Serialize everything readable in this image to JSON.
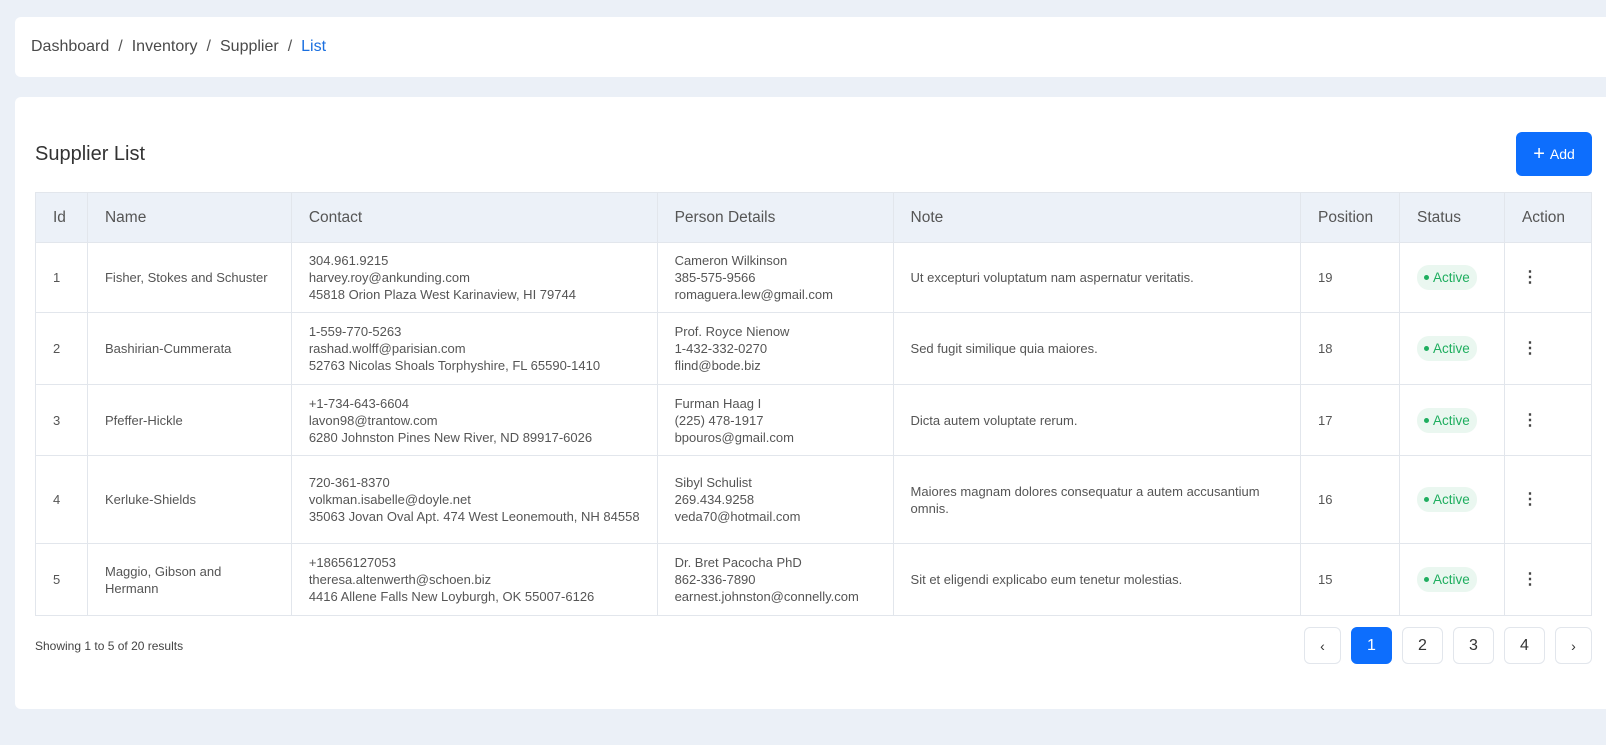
{
  "breadcrumb": [
    "Dashboard",
    "Inventory",
    "Supplier",
    "List"
  ],
  "page": {
    "title": "Supplier List",
    "add_label": "Add"
  },
  "table": {
    "headers": [
      "Id",
      "Name",
      "Contact",
      "Person Details",
      "Note",
      "Position",
      "Status",
      "Action"
    ],
    "rows": [
      {
        "id": "1",
        "name": "Fisher, Stokes and Schuster",
        "contact": [
          "304.961.9215",
          "harvey.roy@ankunding.com",
          "45818 Orion Plaza West Karinaview, HI 79744"
        ],
        "person": [
          "Cameron Wilkinson",
          "385-575-9566",
          "romaguera.lew@gmail.com"
        ],
        "note": "Ut excepturi voluptatum nam aspernatur veritatis.",
        "position": "19",
        "status": "Active"
      },
      {
        "id": "2",
        "name": "Bashirian-Cummerata",
        "contact": [
          "1-559-770-5263",
          "rashad.wolff@parisian.com",
          "52763 Nicolas Shoals Torphyshire, FL 65590-1410"
        ],
        "person": [
          "Prof. Royce Nienow",
          "1-432-332-0270",
          "flind@bode.biz"
        ],
        "note": "Sed fugit similique quia maiores.",
        "position": "18",
        "status": "Active"
      },
      {
        "id": "3",
        "name": "Pfeffer-Hickle",
        "contact": [
          "+1-734-643-6604",
          "lavon98@trantow.com",
          "6280 Johnston Pines New River, ND 89917-6026"
        ],
        "person": [
          "Furman Haag I",
          "(225) 478-1917",
          "bpouros@gmail.com"
        ],
        "note": "Dicta autem voluptate rerum.",
        "position": "17",
        "status": "Active"
      },
      {
        "id": "4",
        "name": "Kerluke-Shields",
        "contact": [
          "720-361-8370",
          "volkman.isabelle@doyle.net",
          "35063 Jovan Oval Apt. 474 West Leonemouth, NH 84558"
        ],
        "person": [
          "Sibyl Schulist",
          "269.434.9258",
          "veda70@hotmail.com"
        ],
        "note": "Maiores magnam dolores consequatur a autem accusantium omnis.",
        "position": "16",
        "status": "Active"
      },
      {
        "id": "5",
        "name": "Maggio, Gibson and Hermann",
        "contact": [
          "+18656127053",
          "theresa.altenwerth@schoen.biz",
          "4416 Allene Falls New Loyburgh, OK 55007-6126"
        ],
        "person": [
          "Dr. Bret Pacocha PhD",
          "862-336-7890",
          "earnest.johnston@connelly.com"
        ],
        "note": "Sit et eligendi explicabo eum tenetur molestias.",
        "position": "15",
        "status": "Active"
      }
    ]
  },
  "footer": {
    "showing": "Showing 1 to 5 of 20 results",
    "pages": [
      "1",
      "2",
      "3",
      "4"
    ],
    "prev": "‹",
    "next": "›",
    "current_page": "1"
  },
  "colors": {
    "accent": "#0d6efd",
    "active": "#1fae5f"
  }
}
